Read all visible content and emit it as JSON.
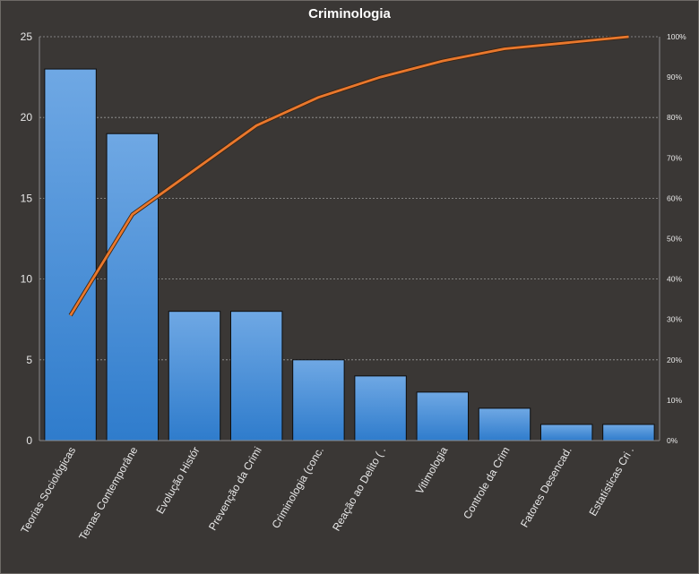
{
  "chart_data": {
    "type": "bar",
    "title": "Criminologia",
    "categories": [
      "Teorias Sociológicas",
      "Temas Contemporâne",
      "Evolução Histór",
      "Prevenção da Crimi",
      "Criminologia (conc.",
      "Reação ao Delito ( .",
      "Vitimologia",
      "Controle da Crim",
      "Fatores Desencad.",
      "Estatísticas Cri ."
    ],
    "series": [
      {
        "type": "bar",
        "values": [
          23,
          19,
          8,
          8,
          5,
          4,
          3,
          2,
          1,
          1
        ]
      },
      {
        "type": "line",
        "axis": "right",
        "values": [
          31,
          56,
          67,
          78,
          85,
          90,
          94,
          97,
          98.5,
          100
        ]
      }
    ],
    "y_left": {
      "range": [
        0,
        25
      ],
      "ticks": [
        "0",
        "5",
        "10",
        "15",
        "20",
        "25"
      ]
    },
    "y_right": {
      "range": [
        0,
        100
      ],
      "ticks": [
        "0%",
        "10%",
        "20%",
        "30%",
        "40%",
        "50%",
        "60%",
        "70%",
        "80%",
        "90%",
        "100%"
      ]
    },
    "grid": true,
    "colors": {
      "background": "#3a3735",
      "bar": "#4a8fd6",
      "line": "#e9782d",
      "grid": "#9a9a9a"
    }
  }
}
